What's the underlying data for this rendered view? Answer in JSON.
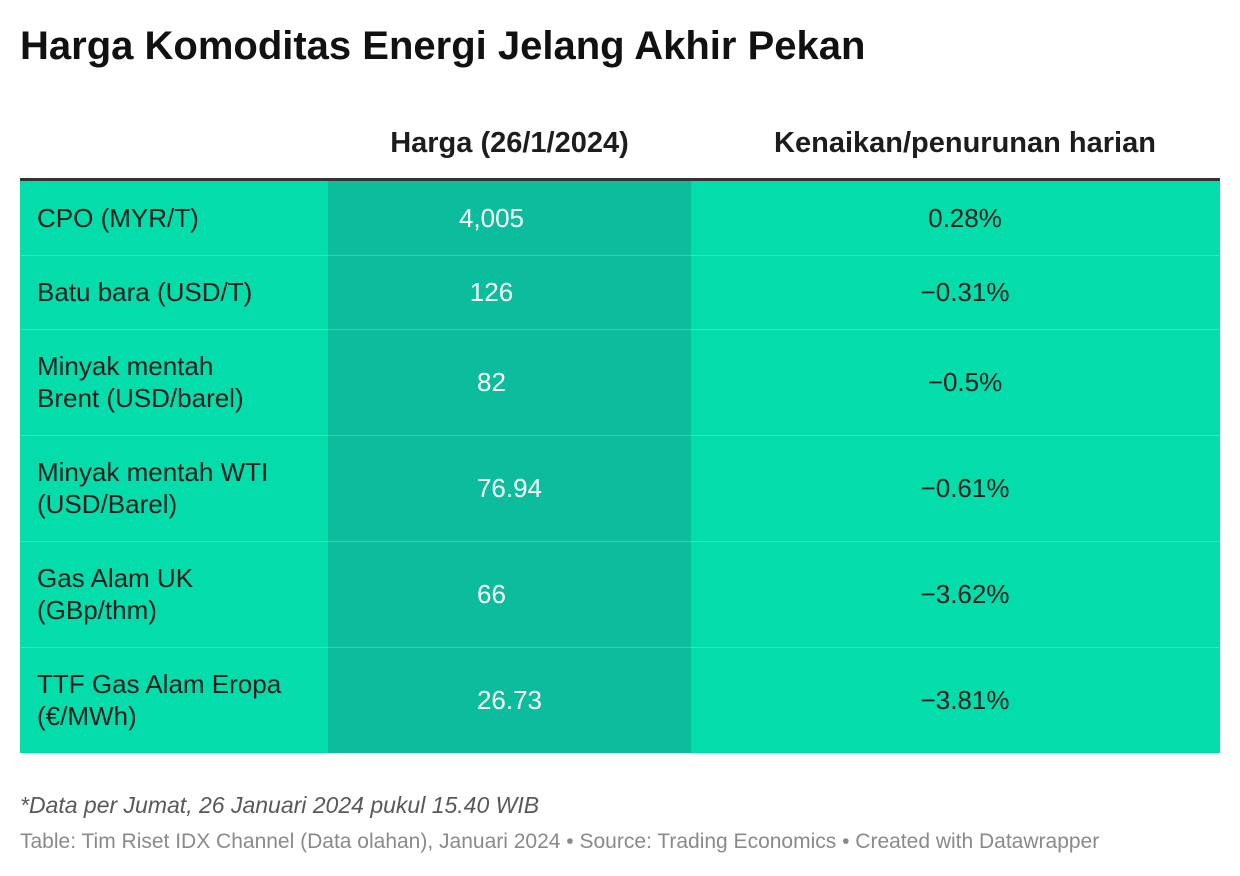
{
  "title": "Harga Komoditas Energi Jelang Akhir Pekan",
  "colors": {
    "cell_light": "#03dcab",
    "cell_dark": "#0bbd9c",
    "value_on_dark": "#ffffff",
    "header_divider": "#333333"
  },
  "chart_data": {
    "type": "table",
    "column_headers": {
      "price": "Harga (26/1/2024)",
      "change": "Kenaikan/penurunan harian"
    },
    "rows": [
      {
        "commodity": "CPO (MYR/T)",
        "price": "4,005",
        "change": "0.28%"
      },
      {
        "commodity": "Batu bara (USD/T)",
        "price": "126",
        "change": "−0.31%"
      },
      {
        "commodity": "Minyak mentah\nBrent (USD/barel)",
        "price": "82",
        "change": "−0.5%"
      },
      {
        "commodity": "Minyak mentah WTI\n(USD/Barel)",
        "price": "76.94",
        "change": "−0.61%"
      },
      {
        "commodity": "Gas Alam UK\n(GBp/thm)",
        "price": "66",
        "change": "−3.62%"
      },
      {
        "commodity": "TTF Gas Alam Eropa\n(€/MWh)",
        "price": "26.73",
        "change": "−3.81%"
      }
    ]
  },
  "footer": {
    "notes": "*Data per Jumat, 26 Januari 2024 pukul 15.40 WIB",
    "byline": "Table: Tim Riset IDX Channel (Data olahan), Januari 2024 • Source: Trading Economics • Created with Datawrapper"
  }
}
